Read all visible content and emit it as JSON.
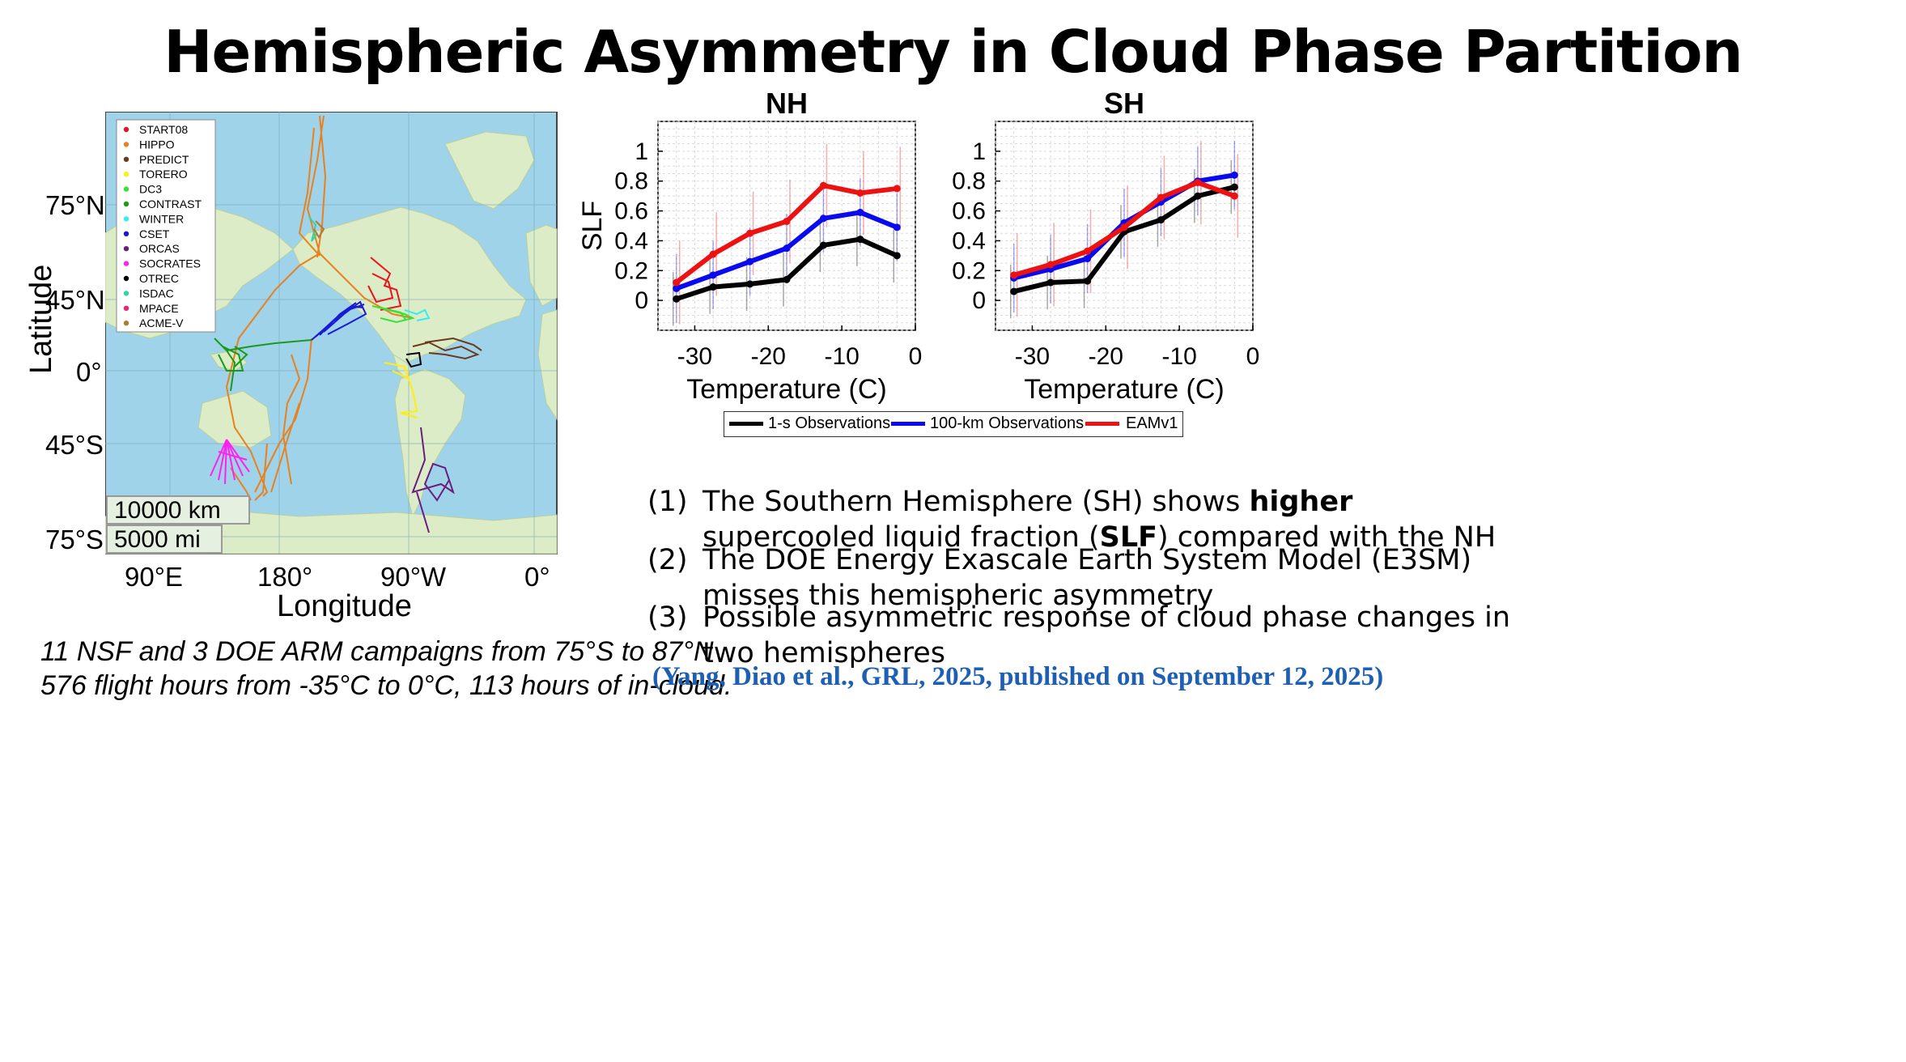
{
  "page": {
    "title": "Hemispheric Asymmetry in Cloud Phase Partition",
    "colors": {
      "ocean": "#9fd3ea",
      "land": "#dcecc6",
      "citation": "#1e5fb4"
    }
  },
  "map": {
    "xlabel": "Longitude",
    "ylabel": "Latitude",
    "lon_ticks": [
      "90°E",
      "180°",
      "90°W",
      "0°"
    ],
    "lat_ticks": [
      "75°N",
      "45°N",
      "0°",
      "45°S",
      "75°S"
    ],
    "scale_km": "10000 km",
    "scale_mi": "5000 mi",
    "legend": [
      {
        "label": "START08",
        "color": "#e8141e"
      },
      {
        "label": "HIPPO",
        "color": "#e8811e"
      },
      {
        "label": "PREDICT",
        "color": "#6b3a1e"
      },
      {
        "label": "TORERO",
        "color": "#ffee11"
      },
      {
        "label": "DC3",
        "color": "#36e336"
      },
      {
        "label": "CONTRAST",
        "color": "#1a9a1a"
      },
      {
        "label": "WINTER",
        "color": "#33eeee"
      },
      {
        "label": "CSET",
        "color": "#1a1ad6"
      },
      {
        "label": "ORCAS",
        "color": "#6a1e7e"
      },
      {
        "label": "SOCRATES",
        "color": "#ff22ee"
      },
      {
        "label": "OTREC",
        "color": "#000000"
      },
      {
        "label": "ISDAC",
        "color": "#2ed6a6"
      },
      {
        "label": "MPACE",
        "color": "#ee2277"
      },
      {
        "label": "ACME-V",
        "color": "#b07a3a"
      }
    ]
  },
  "caption": {
    "line1": "11 NSF and 3 DOE ARM campaigns from 75°S to 87°N",
    "line2": "576 flight hours from -35°C to 0°C, 113 hours of in-cloud."
  },
  "chart_data": [
    {
      "type": "line",
      "title": "NH",
      "xlabel": "Temperature (C)",
      "ylabel": "SLF",
      "xlim": [
        -35,
        0
      ],
      "ylim": [
        -0.2,
        1.2
      ],
      "xticks": [
        "-30",
        "-20",
        "-10",
        "0"
      ],
      "yticks": [
        "0",
        "0.2",
        "0.4",
        "0.6",
        "0.8",
        "1"
      ],
      "x": [
        -32.5,
        -27.5,
        -22.5,
        -17.5,
        -12.5,
        -7.5,
        -2.5
      ],
      "series": [
        {
          "name": "1-s Observations",
          "color": "#000000",
          "values": [
            0.01,
            0.09,
            0.11,
            0.14,
            0.37,
            0.41,
            0.3
          ]
        },
        {
          "name": "100-km Observations",
          "color": "#0a0aee",
          "values": [
            0.08,
            0.17,
            0.26,
            0.35,
            0.55,
            0.59,
            0.49
          ]
        },
        {
          "name": "EAMv1",
          "color": "#ee1111",
          "values": [
            0.12,
            0.31,
            0.45,
            0.53,
            0.77,
            0.72,
            0.75
          ]
        }
      ]
    },
    {
      "type": "line",
      "title": "SH",
      "xlabel": "Temperature (C)",
      "ylabel": "",
      "xlim": [
        -35,
        0
      ],
      "ylim": [
        -0.2,
        1.2
      ],
      "xticks": [
        "-30",
        "-20",
        "-10",
        "0"
      ],
      "yticks": [
        "0",
        "0.2",
        "0.4",
        "0.6",
        "0.8",
        "1"
      ],
      "x": [
        -32.5,
        -27.5,
        -22.5,
        -17.5,
        -12.5,
        -7.5,
        -2.5
      ],
      "series": [
        {
          "name": "1-s Observations",
          "color": "#000000",
          "values": [
            0.06,
            0.12,
            0.13,
            0.46,
            0.54,
            0.7,
            0.76
          ]
        },
        {
          "name": "100-km Observations",
          "color": "#0a0aee",
          "values": [
            0.15,
            0.21,
            0.28,
            0.52,
            0.66,
            0.8,
            0.84
          ]
        },
        {
          "name": "EAMv1",
          "color": "#ee1111",
          "values": [
            0.17,
            0.24,
            0.33,
            0.49,
            0.69,
            0.79,
            0.7
          ]
        }
      ]
    }
  ],
  "findings": [
    {
      "num": "(1)",
      "line1_a": "The Southern Hemisphere (SH) shows ",
      "line1_b": "higher",
      "line2_a": "supercooled liquid fraction (",
      "line2_b": "SLF",
      "line2_c": ") compared with the NH"
    },
    {
      "num": "(2)",
      "line1": "The DOE Energy Exascale Earth System Model (E3SM)",
      "line2": "misses this hemispheric asymmetry"
    },
    {
      "num": "(3)",
      "line1": "Possible asymmetric response of cloud phase changes in",
      "line2": "two hemispheres"
    }
  ],
  "citation": "(Yang, Diao et al., GRL, 2025, published on September 12, 2025)"
}
